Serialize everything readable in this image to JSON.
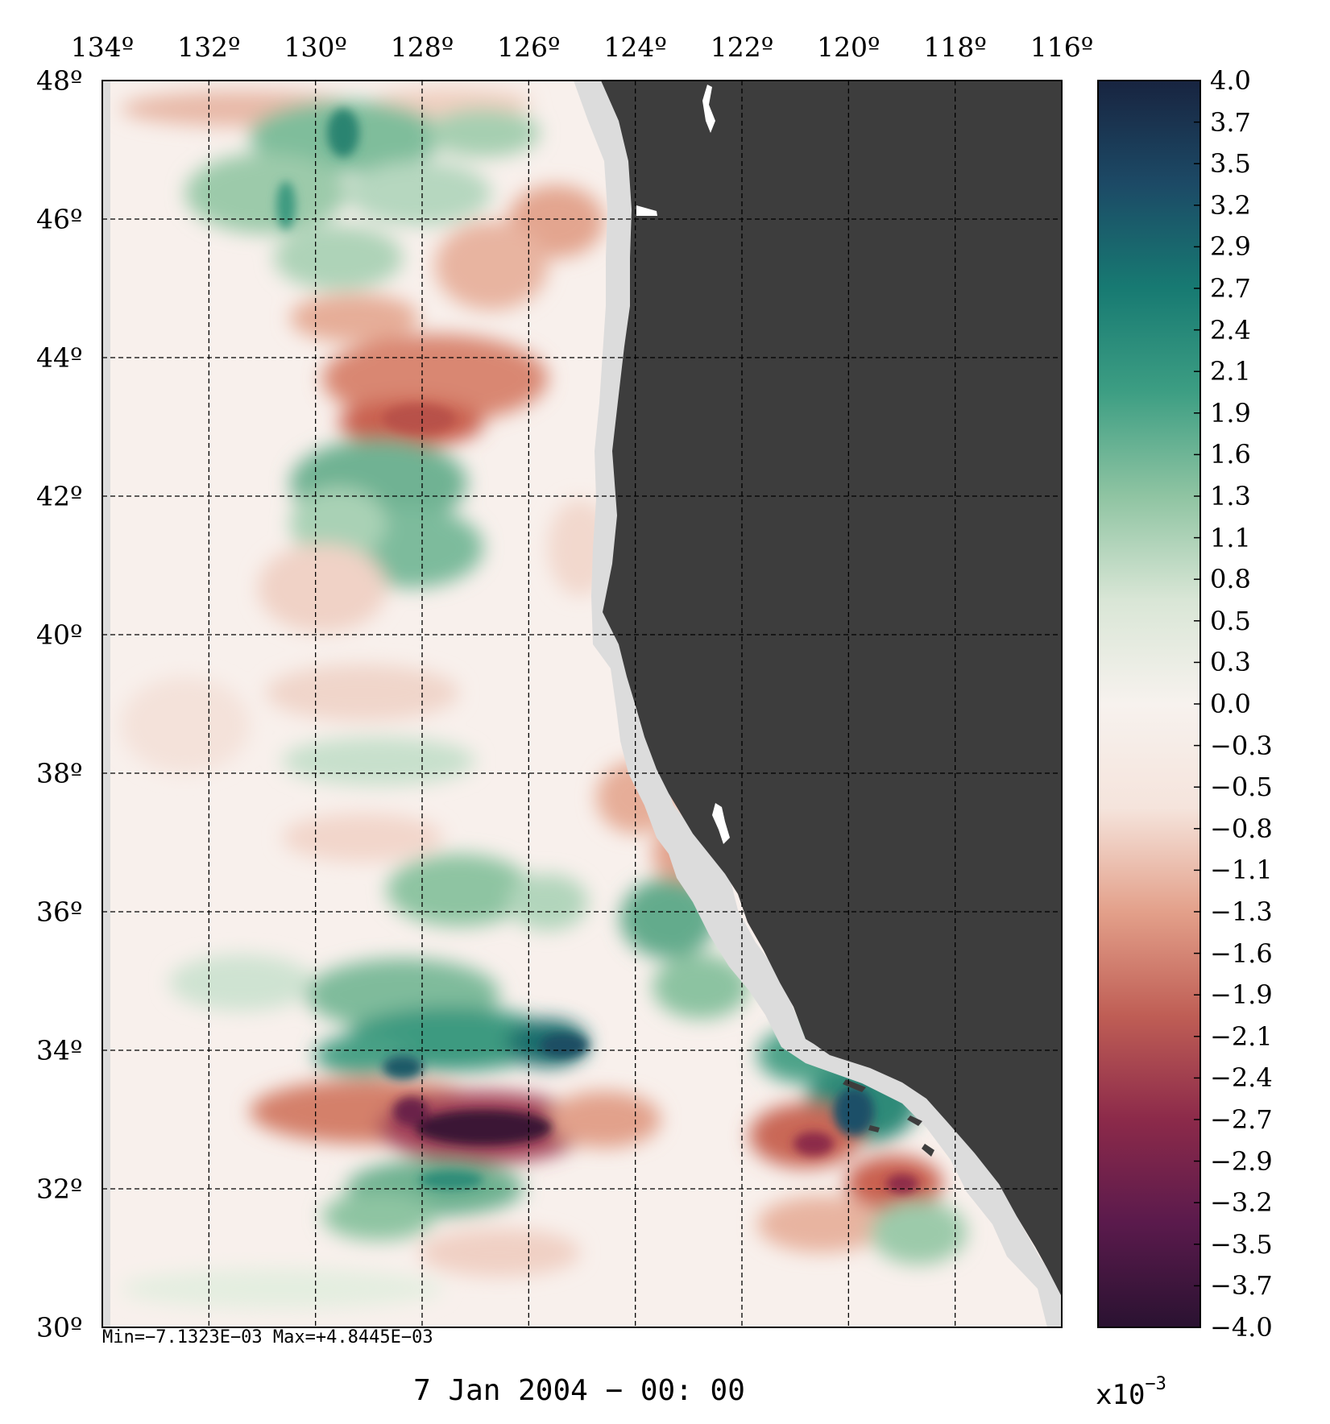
{
  "map": {
    "lon_labels": [
      "134º",
      "132º",
      "130º",
      "128º",
      "126º",
      "124º",
      "122º",
      "120º",
      "118º",
      "116º"
    ],
    "lat_labels": [
      "48º",
      "46º",
      "44º",
      "42º",
      "40º",
      "38º",
      "36º",
      "34º",
      "32º",
      "30º"
    ],
    "lon_range": [
      -134,
      -116
    ],
    "lat_range": [
      30,
      48
    ],
    "gridlines": true,
    "land_color": "#3d3d3d",
    "coast_mask_color": "#dcdcdc"
  },
  "colorbar": {
    "labels": [
      "4.0",
      "3.7",
      "3.5",
      "3.2",
      "2.9",
      "2.7",
      "2.4",
      "2.1",
      "1.9",
      "1.6",
      "1.3",
      "1.1",
      "0.8",
      "0.5",
      "0.3",
      "0.0",
      "−0.3",
      "−0.5",
      "−0.8",
      "−1.1",
      "−1.3",
      "−1.6",
      "−1.9",
      "−2.1",
      "−2.4",
      "−2.7",
      "−2.9",
      "−3.2",
      "−3.5",
      "−3.7",
      "−4.0"
    ],
    "range": [
      -4.0,
      4.0
    ],
    "scale_text": "x10",
    "scale_exponent": "−3",
    "colors": [
      "#2a1231",
      "#5a1a4c",
      "#8c2a4a",
      "#bf5e55",
      "#e3a08a",
      "#f5e4dc",
      "#f7f2ee",
      "#d9e6d6",
      "#8fc4a2",
      "#3d9e83",
      "#177a72",
      "#1c4a66",
      "#182440"
    ]
  },
  "stats": {
    "min_max": "Min=−7.1323E−03   Max=+4.8445E−03"
  },
  "time": {
    "label": "7 Jan 2004 − 00: 00"
  }
}
